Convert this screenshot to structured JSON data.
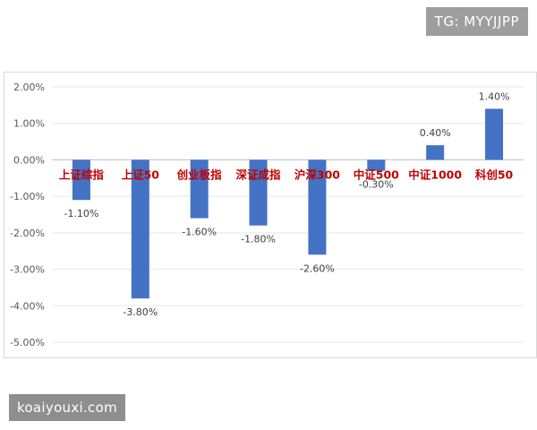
{
  "watermark_top": "TG: MYYJJPP",
  "watermark_bottom": "koaiyouxi.com",
  "chart_data": {
    "type": "bar",
    "categories": [
      "上证综指",
      "上证50",
      "创业板指",
      "深证成指",
      "沪深300",
      "中证500",
      "中证1000",
      "科创50"
    ],
    "values": [
      -1.1,
      -3.8,
      -1.6,
      -1.8,
      -2.6,
      -0.3,
      0.4,
      1.4
    ],
    "value_labels": [
      "-1.10%",
      "-3.80%",
      "-1.60%",
      "-1.80%",
      "-2.60%",
      "-0.30%",
      "0.40%",
      "1.40%"
    ],
    "y_ticks": [
      2.0,
      1.0,
      0.0,
      -1.0,
      -2.0,
      -3.0,
      -4.0,
      -5.0
    ],
    "y_tick_labels": [
      "2.00%",
      "1.00%",
      "0.00%",
      "-1.00%",
      "-2.00%",
      "-3.00%",
      "-4.00%",
      "-5.00%"
    ],
    "ylim": [
      -5.0,
      2.0
    ],
    "bar_color": "#4472c4",
    "category_label_color": "#c00000",
    "grid": true,
    "title": "",
    "xlabel": "",
    "ylabel": ""
  }
}
